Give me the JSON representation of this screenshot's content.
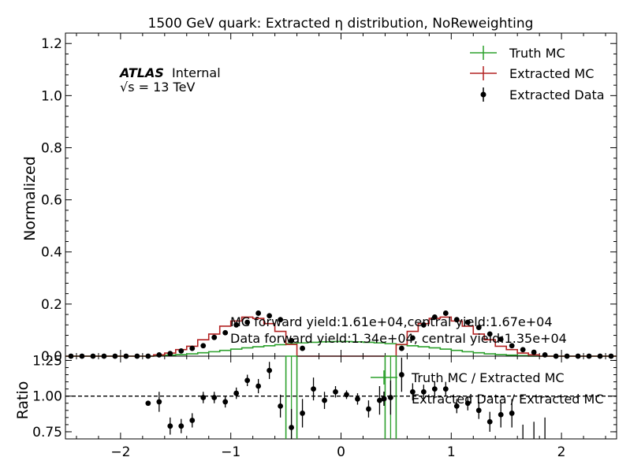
{
  "chart_data": [
    {
      "type": "line",
      "title": "1500 GeV quark: Extracted η distribution, NoReweighting",
      "ylabel": "Normalized",
      "xlim": [
        -2.5,
        2.5
      ],
      "ylim": [
        0,
        1.24
      ],
      "yticks": [
        "0.0",
        "0.2",
        "0.4",
        "0.6",
        "0.8",
        "1.0",
        "1.2"
      ],
      "grid": false,
      "legend_position": "top-right",
      "atlas_label": {
        "bold": "ATLAS",
        "normal": "Internal",
        "energy": "√s = 13 TeV"
      },
      "annotations": [
        "MC forward yield:1.61e+04,central yield:1.67e+04",
        "Data forward yield:1.34e+04, central yield:1.35e+04"
      ],
      "bin_edges": [
        -2.5,
        -2.4,
        -2.3,
        -2.2,
        -2.1,
        -2.0,
        -1.9,
        -1.8,
        -1.7,
        -1.6,
        -1.5,
        -1.4,
        -1.3,
        -1.2,
        -1.1,
        -1.0,
        -0.9,
        -0.8,
        -0.7,
        -0.6,
        -0.5,
        -0.4,
        -0.3,
        -0.2,
        -0.1,
        0.0,
        0.1,
        0.2,
        0.3,
        0.4,
        0.5,
        0.6,
        0.7,
        0.8,
        0.9,
        1.0,
        1.1,
        1.2,
        1.3,
        1.4,
        1.5,
        1.6,
        1.7,
        1.8,
        1.9,
        2.0,
        2.1,
        2.2,
        2.3,
        2.4,
        2.5
      ],
      "series": [
        {
          "name": "Truth MC",
          "color": "#2ca02c",
          "style": "step",
          "values": [
            0,
            0,
            0,
            0,
            0,
            0,
            0,
            0,
            0.002,
            0.004,
            0.006,
            0.009,
            0.013,
            0.017,
            0.022,
            0.027,
            0.032,
            0.036,
            0.04,
            0.044,
            0.048,
            0.051,
            0.053,
            0.055,
            0.056,
            0.056,
            0.055,
            0.053,
            0.051,
            0.048,
            0.044,
            0.04,
            0.036,
            0.032,
            0.027,
            0.022,
            0.017,
            0.013,
            0.009,
            0.006,
            0.004,
            0.002,
            0,
            0,
            0,
            0,
            0,
            0,
            0,
            0
          ]
        },
        {
          "name": "Extracted MC",
          "color": "#b22222",
          "style": "step",
          "values": [
            0,
            0,
            0,
            0,
            0,
            0,
            0,
            0,
            0.005,
            0.012,
            0.025,
            0.038,
            0.063,
            0.085,
            0.115,
            0.135,
            0.15,
            0.145,
            0.125,
            0.095,
            0.045,
            0,
            0,
            0,
            0,
            0,
            0,
            0,
            0,
            0,
            0.045,
            0.095,
            0.125,
            0.145,
            0.15,
            0.135,
            0.115,
            0.085,
            0.063,
            0.038,
            0.025,
            0.012,
            0.005,
            0,
            0,
            0,
            0,
            0,
            0,
            0
          ]
        },
        {
          "name": "Extracted Data",
          "color": "#000000",
          "style": "points",
          "values": [
            0,
            0,
            0,
            0,
            0,
            0,
            0,
            0,
            0.005,
            0.01,
            0.02,
            0.03,
            0.04,
            0.072,
            0.09,
            0.12,
            0.13,
            0.165,
            0.155,
            0.14,
            0.06,
            0.03,
            null,
            null,
            null,
            null,
            null,
            null,
            null,
            null,
            0.03,
            0.07,
            0.12,
            0.15,
            0.165,
            0.14,
            0.13,
            0.11,
            0.085,
            0.065,
            0.04,
            0.025,
            0.015,
            0.005,
            0,
            0,
            0,
            0,
            0,
            0
          ],
          "errors": [
            0,
            0,
            0,
            0,
            0,
            0,
            0,
            0,
            0.003,
            0.004,
            0.005,
            0.005,
            0.006,
            0.008,
            0.008,
            0.009,
            0.009,
            0.01,
            0.01,
            0.01,
            0.008,
            0.006,
            null,
            null,
            null,
            null,
            null,
            null,
            null,
            null,
            0.006,
            0.008,
            0.01,
            0.01,
            0.01,
            0.009,
            0.009,
            0.008,
            0.008,
            0.006,
            0.005,
            0.005,
            0.004,
            0.003,
            0,
            0,
            0,
            0,
            0,
            0
          ]
        }
      ]
    },
    {
      "type": "line",
      "ylabel": "Ratio",
      "xlim": [
        -2.5,
        2.5
      ],
      "ylim": [
        0.7,
        1.28
      ],
      "yticks": [
        "0.75",
        "1.00",
        "1.25"
      ],
      "xticks": [
        "−2",
        "−1",
        "0",
        "1",
        "2"
      ],
      "reference_line": 1.0,
      "legend_position": "top-right",
      "series": [
        {
          "name": "Truth MC / Extracted MC",
          "color": "#2ca02c",
          "style": "step",
          "bins": [
            {
              "x0": -0.5,
              "x1": -0.4,
              "value": 1.28
            },
            {
              "x0": 0.4,
              "x1": 0.5,
              "value": 1.28
            }
          ]
        },
        {
          "name": "Extracted Data / Extracted MC",
          "color": "#000000",
          "style": "points",
          "x": [
            -1.75,
            -1.65,
            -1.55,
            -1.45,
            -1.35,
            -1.25,
            -1.15,
            -1.05,
            -0.95,
            -0.85,
            -0.75,
            -0.65,
            -0.55,
            -0.45,
            -0.35,
            -0.25,
            -0.15,
            -0.05,
            0.05,
            0.15,
            0.25,
            0.35,
            0.45,
            0.55,
            0.65,
            0.75,
            0.85,
            0.95,
            1.05,
            1.15,
            1.25,
            1.35,
            1.45,
            1.55,
            1.65,
            1.75,
            1.85
          ],
          "values": [
            0.95,
            0.96,
            0.79,
            0.79,
            0.83,
            0.99,
            0.99,
            0.96,
            1.02,
            1.11,
            1.07,
            1.18,
            0.93,
            0.78,
            0.88,
            1.05,
            0.97,
            1.03,
            1.01,
            0.98,
            0.91,
            0.97,
            0.99,
            1.15,
            1.03,
            1.03,
            1.05,
            1.05,
            0.93,
            0.95,
            0.9,
            0.82,
            0.87,
            0.88,
            0.7,
            0.7,
            0.7
          ],
          "errors": [
            0.01,
            0.07,
            0.06,
            0.05,
            0.05,
            0.04,
            0.04,
            0.04,
            0.04,
            0.04,
            0.05,
            0.06,
            0.08,
            0.13,
            0.1,
            0.08,
            0.06,
            0.04,
            0.03,
            0.04,
            0.06,
            0.1,
            0.12,
            0.12,
            0.06,
            0.05,
            0.05,
            0.05,
            0.05,
            0.05,
            0.06,
            0.07,
            0.09,
            0.1,
            0.1,
            0.12,
            0.15
          ]
        }
      ]
    }
  ]
}
